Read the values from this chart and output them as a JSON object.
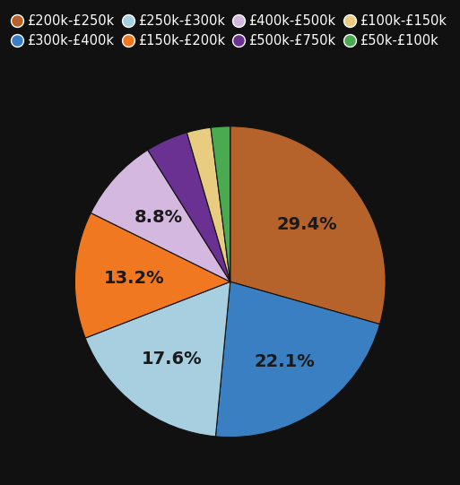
{
  "labels": [
    "£200k-£250k",
    "£300k-£400k",
    "£250k-£300k",
    "£150k-£200k",
    "£400k-£500k",
    "£500k-£750k",
    "£100k-£150k",
    "£50k-£100k"
  ],
  "values": [
    29.4,
    22.1,
    17.6,
    13.2,
    8.8,
    4.4,
    2.5,
    2.0
  ],
  "colors": [
    "#b5632a",
    "#3a7fc1",
    "#a8cfe0",
    "#f07820",
    "#d4b8e0",
    "#6a3092",
    "#e8cc80",
    "#4aaa50"
  ],
  "pct_labels": [
    "29.4%",
    "22.1%",
    "17.6%",
    "13.2%",
    "8.8%",
    "",
    "",
    ""
  ],
  "background_color": "#111111",
  "text_color": "#ffffff",
  "label_text_color": "#1a1a1a",
  "startangle": 90,
  "legend_ncol": 4,
  "legend_fontsize": 10.5,
  "pct_fontsize": 14,
  "legend_labels_row1": [
    "£200k-£250k",
    "£300k-£400k",
    "£250k-£300k",
    "£150k-£200k"
  ],
  "legend_labels_row2": [
    "£400k-£500k",
    "£500k-£750k",
    "£100k-£150k",
    "£50k-£100k"
  ]
}
